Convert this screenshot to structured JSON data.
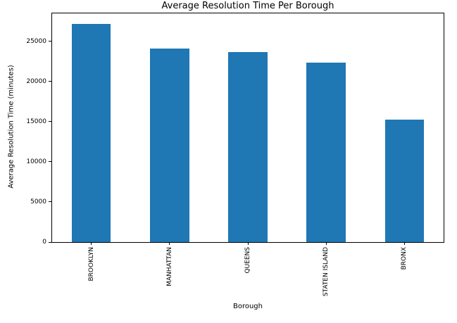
{
  "chart_data": {
    "type": "bar",
    "title": "Average Resolution Time Per Borough",
    "xlabel": "Borough",
    "ylabel": "Average Resolution Time (minutes)",
    "categories": [
      "BROOKLYN",
      "MANHATTAN",
      "QUEENS",
      "STATEN ISLAND",
      "BRONX"
    ],
    "values": [
      27150,
      24100,
      23650,
      22400,
      15300
    ],
    "yticks": [
      0,
      5000,
      10000,
      15000,
      20000,
      25000
    ],
    "ylim": [
      0,
      28500
    ],
    "bar_color": "#1f77b4",
    "bar_width_fraction": 0.5,
    "x_tick_rotation": 90,
    "grid": false,
    "legend": false,
    "background_color": "#ffffff",
    "text_color": "#000000",
    "spine_color": "#000000"
  }
}
